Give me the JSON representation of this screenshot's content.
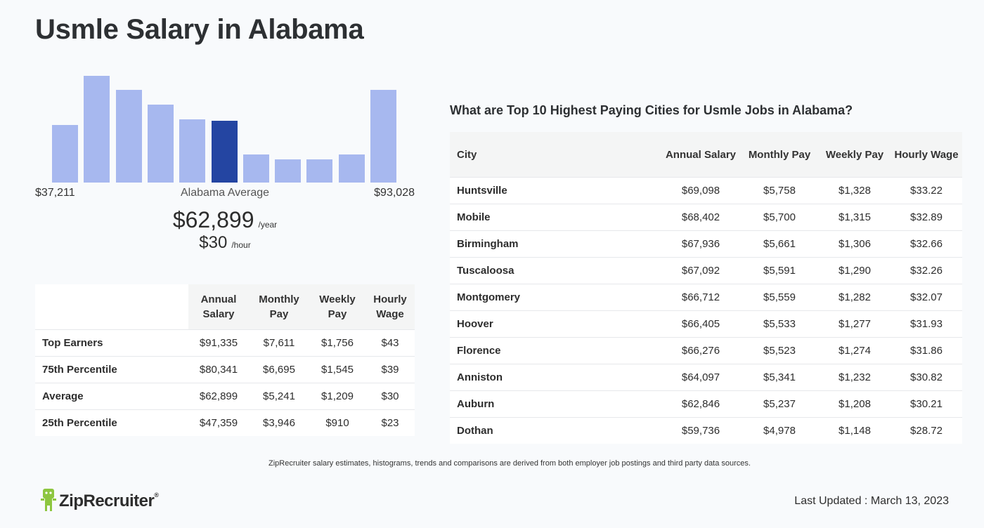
{
  "page": {
    "title": "Usmle Salary in Alabama",
    "footnote": "ZipRecruiter salary estimates, histograms, trends and comparisons are derived from both employer job postings and third party data sources.",
    "last_updated": "Last Updated : March 13, 2023",
    "brand": "ZipRecruiter",
    "brand_mark": "®"
  },
  "chart_data": {
    "type": "bar",
    "values": [
      0.54,
      1.0,
      0.87,
      0.73,
      0.59,
      0.58,
      0.26,
      0.22,
      0.22,
      0.26,
      0.87
    ],
    "highlight_index": 5,
    "colors": {
      "bar": "#a7b8ef",
      "highlight": "#2445a2"
    },
    "min_label": "$37,211",
    "max_label": "$93,028",
    "average_label": "Alabama Average"
  },
  "summary": {
    "yearly": "$62,899",
    "yearly_unit": "/year",
    "hourly": "$30",
    "hourly_unit": "/hour"
  },
  "percentile_table": {
    "headers": [
      "Annual Salary",
      "Monthly Pay",
      "Weekly Pay",
      "Hourly Wage"
    ],
    "rows": [
      {
        "label": "Top Earners",
        "values": [
          "$91,335",
          "$7,611",
          "$1,756",
          "$43"
        ]
      },
      {
        "label": "75th Percentile",
        "values": [
          "$80,341",
          "$6,695",
          "$1,545",
          "$39"
        ]
      },
      {
        "label": "Average",
        "values": [
          "$62,899",
          "$5,241",
          "$1,209",
          "$30"
        ]
      },
      {
        "label": "25th Percentile",
        "values": [
          "$47,359",
          "$3,946",
          "$910",
          "$23"
        ]
      }
    ]
  },
  "cities": {
    "heading": "What are Top 10 Highest Paying Cities for Usmle Jobs in Alabama?",
    "headers": [
      "City",
      "Annual Salary",
      "Monthly Pay",
      "Weekly Pay",
      "Hourly Wage"
    ],
    "rows": [
      {
        "label": "Huntsville",
        "values": [
          "$69,098",
          "$5,758",
          "$1,328",
          "$33.22"
        ]
      },
      {
        "label": "Mobile",
        "values": [
          "$68,402",
          "$5,700",
          "$1,315",
          "$32.89"
        ]
      },
      {
        "label": "Birmingham",
        "values": [
          "$67,936",
          "$5,661",
          "$1,306",
          "$32.66"
        ]
      },
      {
        "label": "Tuscaloosa",
        "values": [
          "$67,092",
          "$5,591",
          "$1,290",
          "$32.26"
        ]
      },
      {
        "label": "Montgomery",
        "values": [
          "$66,712",
          "$5,559",
          "$1,282",
          "$32.07"
        ]
      },
      {
        "label": "Hoover",
        "values": [
          "$66,405",
          "$5,533",
          "$1,277",
          "$31.93"
        ]
      },
      {
        "label": "Florence",
        "values": [
          "$66,276",
          "$5,523",
          "$1,274",
          "$31.86"
        ]
      },
      {
        "label": "Anniston",
        "values": [
          "$64,097",
          "$5,341",
          "$1,232",
          "$30.82"
        ]
      },
      {
        "label": "Auburn",
        "values": [
          "$62,846",
          "$5,237",
          "$1,208",
          "$30.21"
        ]
      },
      {
        "label": "Dothan",
        "values": [
          "$59,736",
          "$4,978",
          "$1,148",
          "$28.72"
        ]
      }
    ]
  }
}
